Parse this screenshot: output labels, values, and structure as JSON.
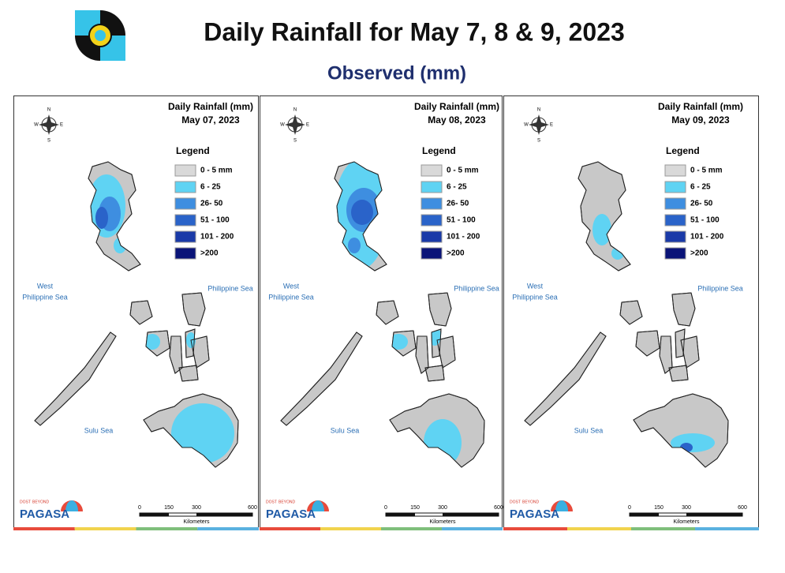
{
  "header": {
    "title": "Daily Rainfall for May 7, 8 & 9, 2023",
    "subtitle": "Observed (mm)"
  },
  "panels": [
    {
      "title": "Daily Rainfall (mm)",
      "date": "May 07, 2023",
      "legend_title": "Legend",
      "legend": [
        {
          "label": "0 - 5 mm",
          "color": "#d9d9d9"
        },
        {
          "label": "6 - 25",
          "color": "#5fd3f3"
        },
        {
          "label": "26- 50",
          "color": "#3e8ee0"
        },
        {
          "label": "51 - 100",
          "color": "#2a63c9"
        },
        {
          "label": "101 - 200",
          "color": "#1a3aa8"
        },
        {
          "label": ">200",
          "color": "#0a1478"
        }
      ],
      "seas": {
        "west": [
          "West",
          "Philippine Sea"
        ],
        "east": "Philippine Sea",
        "south": "Sulu Sea"
      },
      "scale": [
        "0",
        "150",
        "300",
        "600"
      ],
      "scale_unit": "Kilometers",
      "compass": [
        "N",
        "W",
        "E",
        "S"
      ],
      "logo": {
        "top": "DOST",
        "mid": "BEYOND",
        "name": "PAGASA"
      }
    },
    {
      "title": "Daily Rainfall (mm)",
      "date": "May 08, 2023",
      "legend_title": "Legend",
      "legend": [
        {
          "label": "0 - 5 mm",
          "color": "#d9d9d9"
        },
        {
          "label": "6 - 25",
          "color": "#5fd3f3"
        },
        {
          "label": "26- 50",
          "color": "#3e8ee0"
        },
        {
          "label": "51 - 100",
          "color": "#2a63c9"
        },
        {
          "label": "101 - 200",
          "color": "#1a3aa8"
        },
        {
          "label": ">200",
          "color": "#0a1478"
        }
      ],
      "seas": {
        "west": [
          "West",
          "Philippine Sea"
        ],
        "east": "Philippine Sea",
        "south": "Sulu Sea"
      },
      "scale": [
        "0",
        "150",
        "300",
        "600"
      ],
      "scale_unit": "Kilometers",
      "compass": [
        "N",
        "W",
        "E",
        "S"
      ],
      "logo": {
        "top": "DOST",
        "mid": "BEYOND",
        "name": "PAGASA"
      }
    },
    {
      "title": "Daily Rainfall (mm)",
      "date": "May 09, 2023",
      "legend_title": "Legend",
      "legend": [
        {
          "label": "0 - 5 mm",
          "color": "#d9d9d9"
        },
        {
          "label": "6 - 25",
          "color": "#5fd3f3"
        },
        {
          "label": "26- 50",
          "color": "#3e8ee0"
        },
        {
          "label": "51 - 100",
          "color": "#2a63c9"
        },
        {
          "label": "101 - 200",
          "color": "#1a3aa8"
        },
        {
          "label": ">200",
          "color": "#0a1478"
        }
      ],
      "seas": {
        "west": [
          "West",
          "Philippine Sea"
        ],
        "east": "Philippine Sea",
        "south": "Sulu Sea"
      },
      "scale": [
        "0",
        "150",
        "300",
        "600"
      ],
      "scale_unit": "Kilometers",
      "compass": [
        "N",
        "W",
        "E",
        "S"
      ],
      "logo": {
        "top": "DOST",
        "mid": "BEYOND",
        "name": "PAGASA"
      }
    }
  ]
}
